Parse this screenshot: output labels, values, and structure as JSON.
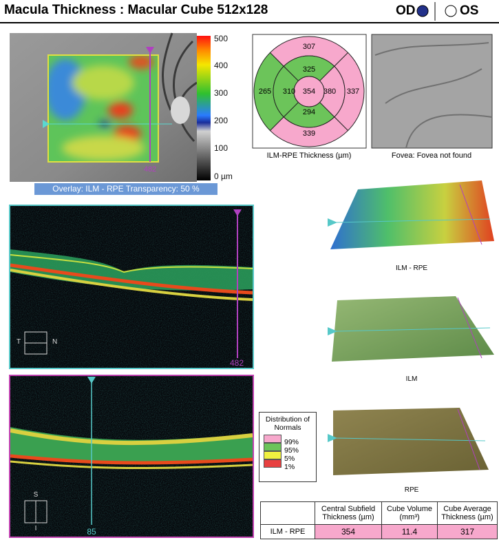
{
  "header": {
    "title": "Macula Thickness : Macular Cube 512x128",
    "od": "OD",
    "os": "OS"
  },
  "thickness_map": {
    "scale_labels": [
      "500",
      "400",
      "300",
      "200",
      "100",
      "0 µm"
    ],
    "scan_position": "482",
    "overlay": "Overlay: ILM - RPE  Transparency: 50 %"
  },
  "etdrs": {
    "center": "354",
    "inner": {
      "superior": "325",
      "nasal": "380",
      "inferior": "294",
      "temporal": "310"
    },
    "outer": {
      "superior": "307",
      "nasal": "337",
      "inferior": "339",
      "temporal": "265"
    },
    "caption": "ILM-RPE Thickness (µm)"
  },
  "fovea": {
    "caption": "Fovea: Fovea not found"
  },
  "bscan_horizontal": {
    "left": "T",
    "right": "N",
    "position": "482"
  },
  "bscan_vertical": {
    "top": "S",
    "bottom": "I",
    "position": "85"
  },
  "surfaces": [
    "ILM - RPE",
    "ILM",
    "RPE"
  ],
  "normals_legend": {
    "title": "Distribution of Normals",
    "levels": [
      "99%",
      "95%",
      "5%",
      "1%"
    ]
  },
  "table": {
    "columns": [
      "Central Subfield Thickness (µm)",
      "Cube Volume (mm³)",
      "Cube Average Thickness (µm)"
    ],
    "rows": [
      [
        "ILM - RPE",
        "354",
        "11.4",
        "317"
      ]
    ]
  }
}
